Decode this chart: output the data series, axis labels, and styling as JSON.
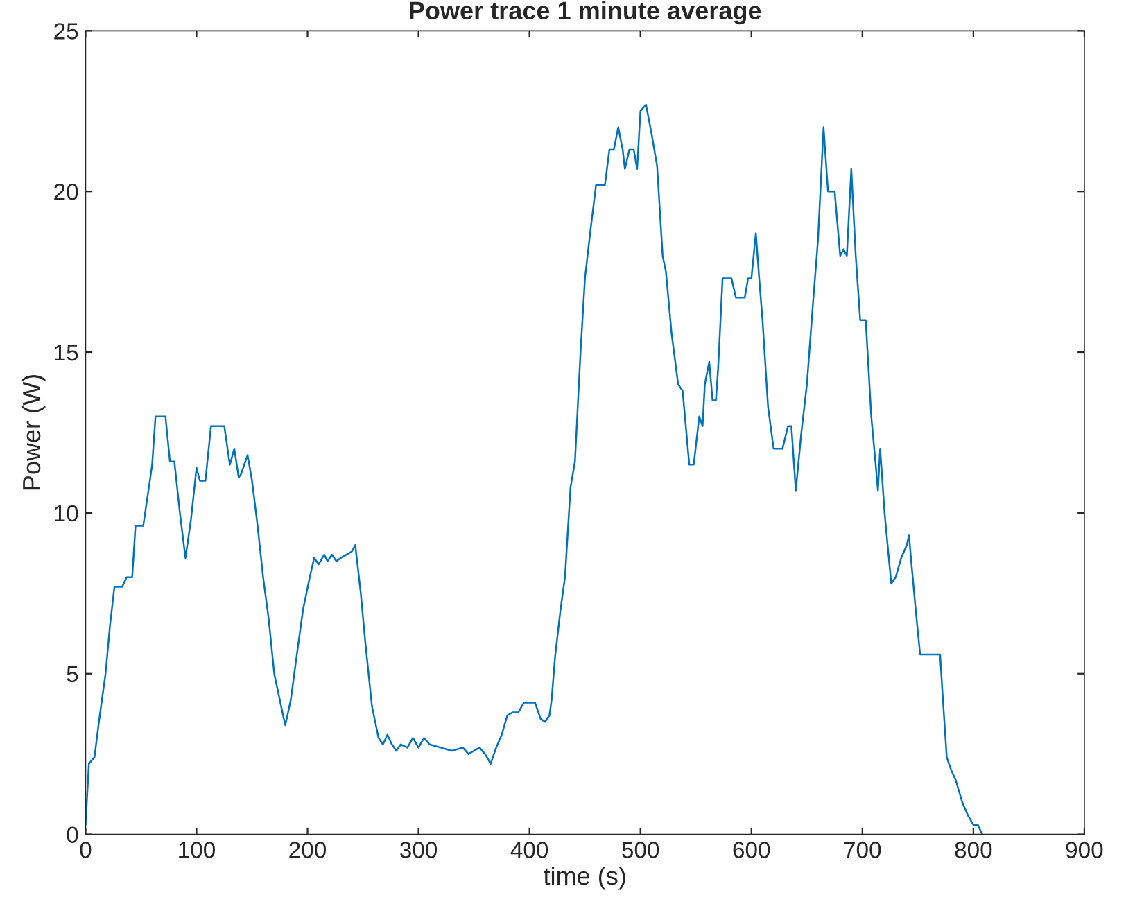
{
  "chart_data": {
    "type": "line",
    "title": "Power trace 1 minute average",
    "xlabel": "time (s)",
    "ylabel": "Power (W)",
    "xlim": [
      0,
      900
    ],
    "ylim": [
      0,
      25
    ],
    "xticks": [
      0,
      100,
      200,
      300,
      400,
      500,
      600,
      700,
      800,
      900
    ],
    "yticks": [
      0,
      5,
      10,
      15,
      20,
      25
    ],
    "grid": false,
    "legend": false,
    "series": [
      {
        "color": "#0072bd",
        "x": [
          0,
          3,
          8,
          12,
          18,
          22,
          26,
          33,
          37,
          42,
          45,
          52,
          60,
          63,
          72,
          76,
          80,
          85,
          90,
          95,
          100,
          103,
          108,
          113,
          125,
          130,
          134,
          138,
          140,
          146,
          150,
          155,
          160,
          165,
          170,
          178,
          180,
          185,
          190,
          196,
          202,
          206,
          210,
          215,
          218,
          222,
          226,
          230,
          235,
          240,
          243,
          248,
          252,
          258,
          264,
          268,
          272,
          276,
          280,
          284,
          290,
          295,
          300,
          305,
          310,
          320,
          330,
          340,
          345,
          350,
          355,
          360,
          365,
          370,
          375,
          380,
          385,
          390,
          395,
          405,
          410,
          414,
          418,
          420,
          423,
          428,
          432,
          437,
          441,
          446,
          450,
          455,
          460,
          468,
          472,
          476,
          480,
          484,
          486,
          490,
          494,
          497,
          500,
          505,
          510,
          515,
          520,
          523,
          528,
          534,
          538,
          544,
          548,
          553,
          556,
          558,
          562,
          565,
          568,
          570,
          574,
          582,
          586,
          594,
          597,
          600,
          604,
          607,
          610,
          615,
          620,
          628,
          633,
          636,
          640,
          645,
          650,
          655,
          660,
          665,
          669,
          675,
          680,
          683,
          686,
          690,
          694,
          698,
          703,
          708,
          712,
          714,
          716,
          720,
          726,
          730,
          735,
          740,
          742,
          744,
          748,
          752,
          760,
          770,
          772,
          776,
          780,
          784,
          790,
          795,
          800,
          804,
          808
        ],
        "values": [
          0.3,
          2.2,
          2.4,
          3.5,
          5,
          6.5,
          7.7,
          7.7,
          8,
          8,
          9.6,
          9.6,
          11.5,
          13,
          13,
          11.6,
          11.6,
          10,
          8.6,
          9.8,
          11.4,
          11,
          11,
          12.7,
          12.7,
          11.5,
          12,
          11.1,
          11.2,
          11.8,
          11,
          9.6,
          8,
          6.7,
          5,
          3.7,
          3.4,
          4.2,
          5.5,
          7,
          8,
          8.6,
          8.4,
          8.7,
          8.5,
          8.7,
          8.5,
          8.6,
          8.7,
          8.8,
          9,
          7.5,
          6,
          4,
          3,
          2.8,
          3.1,
          2.8,
          2.6,
          2.8,
          2.7,
          3,
          2.7,
          3,
          2.8,
          2.7,
          2.6,
          2.7,
          2.5,
          2.6,
          2.7,
          2.5,
          2.2,
          2.7,
          3.1,
          3.7,
          3.8,
          3.8,
          4.1,
          4.1,
          3.6,
          3.5,
          3.7,
          4.2,
          5.5,
          7,
          8,
          10.8,
          11.6,
          15,
          17.3,
          18.8,
          20.2,
          20.2,
          21.3,
          21.3,
          22,
          21.3,
          20.7,
          21.3,
          21.3,
          20.7,
          22.5,
          22.7,
          21.8,
          20.8,
          18,
          17.5,
          15.6,
          14,
          13.8,
          11.5,
          11.5,
          13,
          12.7,
          14,
          14.7,
          13.5,
          13.5,
          14.5,
          17.3,
          17.3,
          16.7,
          16.7,
          17.3,
          17.3,
          18.7,
          17.3,
          16,
          13.3,
          12,
          12,
          12.7,
          12.7,
          10.7,
          12.5,
          14,
          16.3,
          18.5,
          22,
          20,
          20,
          18,
          18.2,
          18,
          20.7,
          18,
          16,
          16,
          13,
          11.5,
          10.7,
          12,
          10,
          7.8,
          8,
          8.6,
          9,
          9.3,
          8.5,
          7,
          5.6,
          5.6,
          5.6,
          4.5,
          2.4,
          2,
          1.7,
          1,
          0.6,
          0.3,
          0.3,
          0
        ]
      }
    ]
  }
}
